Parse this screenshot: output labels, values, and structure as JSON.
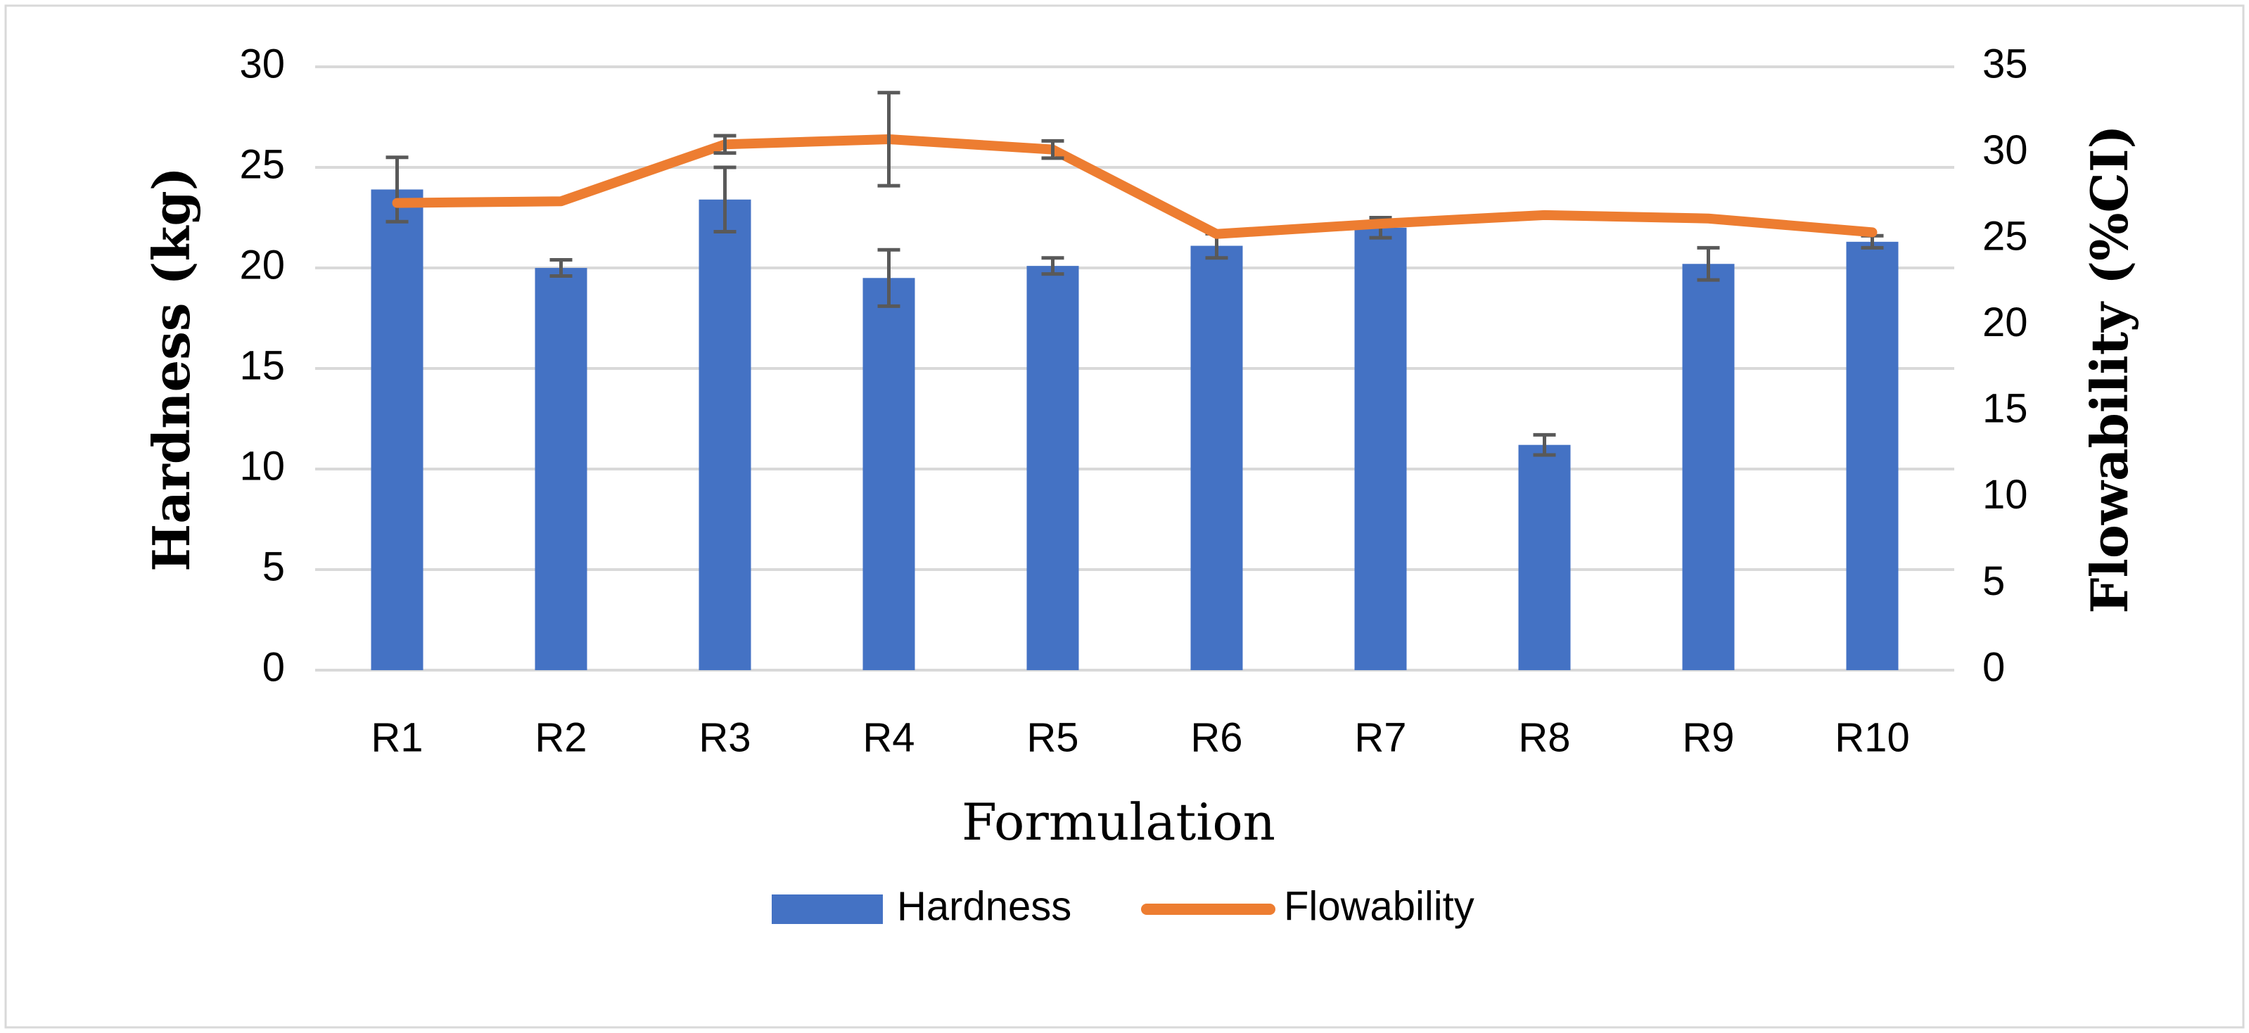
{
  "chart_data": {
    "type": "bar",
    "title": "",
    "xlabel": "Formulation",
    "ylabel": "Hardness (kg)",
    "y2label": "Flowability (%CI)",
    "categories": [
      "R1",
      "R2",
      "R3",
      "R4",
      "R5",
      "R6",
      "R7",
      "R8",
      "R9",
      "R10"
    ],
    "ylim": [
      0,
      30
    ],
    "y2lim": [
      0,
      35
    ],
    "yticks": [
      "0",
      "5",
      "10",
      "15",
      "20",
      "25",
      "30"
    ],
    "y2ticks": [
      "0",
      "5",
      "10",
      "15",
      "20",
      "25",
      "30",
      "35"
    ],
    "grid": true,
    "legend_position": "bottom",
    "series": [
      {
        "name": "Hardness",
        "type": "bar",
        "axis": "left",
        "color": "#4472C4",
        "values": [
          23.9,
          20.0,
          23.4,
          19.5,
          20.1,
          21.1,
          22.0,
          11.2,
          20.2,
          21.3
        ],
        "errors": [
          1.6,
          0.4,
          1.6,
          1.4,
          0.4,
          0.6,
          0.5,
          0.5,
          0.8,
          0.3
        ]
      },
      {
        "name": "Flowability",
        "type": "line",
        "axis": "right",
        "color": "#ED7D31",
        "values": [
          27.1,
          27.2,
          30.5,
          30.8,
          30.2,
          25.3,
          25.9,
          26.4,
          26.2,
          25.4
        ],
        "errors": [
          0,
          0,
          0.5,
          2.7,
          0.5,
          0,
          0,
          0,
          0,
          0
        ]
      }
    ]
  }
}
